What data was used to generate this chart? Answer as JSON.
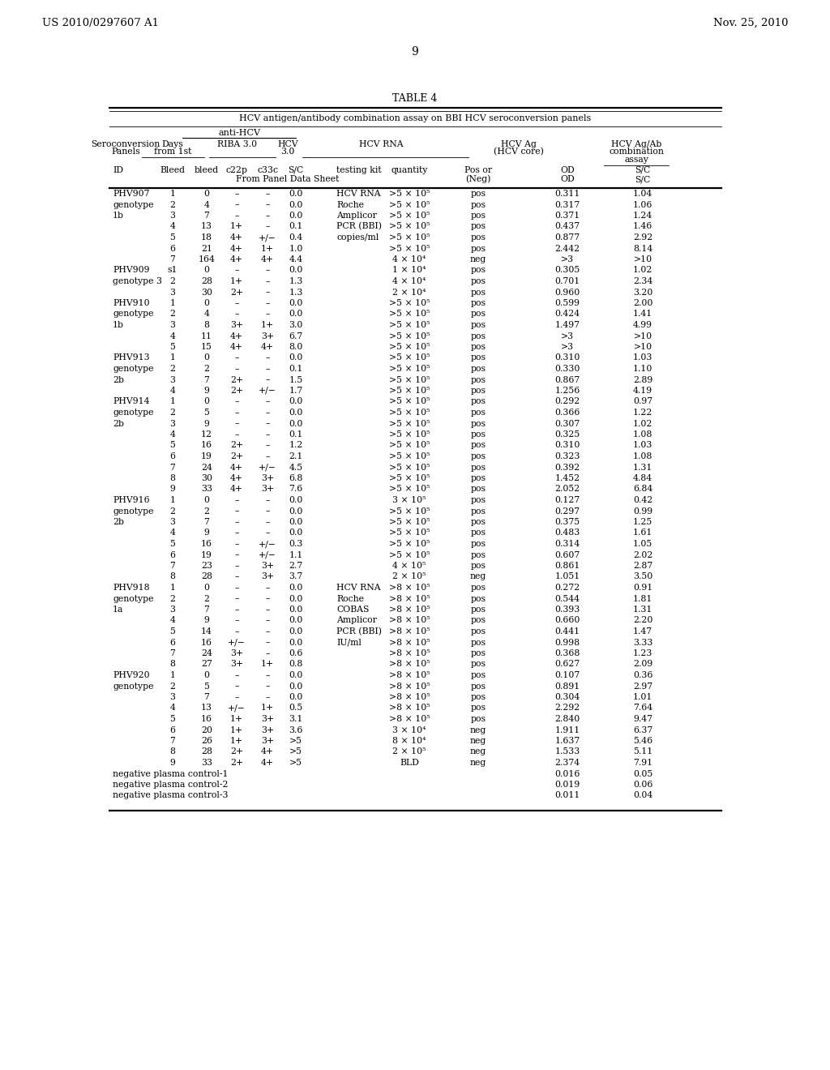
{
  "title": "TABLE 4",
  "page_header_left": "US 2010/0297607 A1",
  "page_header_right": "Nov. 25, 2010",
  "page_number": "9",
  "subtitle": "HCV antigen/antibody combination assay on BBI HCV seroconversion panels",
  "rows": [
    [
      "PHV907",
      "1",
      "0",
      "–",
      "–",
      "0.0",
      "HCV RNA",
      ">5 × 10⁵",
      "pos",
      "0.311",
      "1.04"
    ],
    [
      "genotype",
      "2",
      "4",
      "–",
      "–",
      "0.0",
      "Roche",
      ">5 × 10⁵",
      "pos",
      "0.317",
      "1.06"
    ],
    [
      "1b",
      "3",
      "7",
      "–",
      "–",
      "0.0",
      "Amplicor",
      ">5 × 10⁵",
      "pos",
      "0.371",
      "1.24"
    ],
    [
      "",
      "4",
      "13",
      "1+",
      "–",
      "0.1",
      "PCR (BBI)",
      ">5 × 10⁵",
      "pos",
      "0.437",
      "1.46"
    ],
    [
      "",
      "5",
      "18",
      "4+",
      "+/−",
      "0.4",
      "copies/ml",
      ">5 × 10⁵",
      "pos",
      "0.877",
      "2.92"
    ],
    [
      "",
      "6",
      "21",
      "4+",
      "1+",
      "1.0",
      "",
      ">5 × 10⁵",
      "pos",
      "2.442",
      "8.14"
    ],
    [
      "",
      "7",
      "164",
      "4+",
      "4+",
      "4.4",
      "",
      "4 × 10⁴",
      "neg",
      ">3",
      ">10"
    ],
    [
      "PHV909",
      "s1",
      "0",
      "–",
      "–",
      "0.0",
      "",
      "1 × 10⁴",
      "pos",
      "0.305",
      "1.02"
    ],
    [
      "genotype 3",
      "2",
      "28",
      "1+",
      "–",
      "1.3",
      "",
      "4 × 10⁴",
      "pos",
      "0.701",
      "2.34"
    ],
    [
      "",
      "3",
      "30",
      "2+",
      "–",
      "1.3",
      "",
      "2 × 10⁴",
      "pos",
      "0.960",
      "3.20"
    ],
    [
      "PHV910",
      "1",
      "0",
      "–",
      "–",
      "0.0",
      "",
      ">5 × 10⁵",
      "pos",
      "0.599",
      "2.00"
    ],
    [
      "genotype",
      "2",
      "4",
      "–",
      "–",
      "0.0",
      "",
      ">5 × 10⁵",
      "pos",
      "0.424",
      "1.41"
    ],
    [
      "1b",
      "3",
      "8",
      "3+",
      "1+",
      "3.0",
      "",
      ">5 × 10⁵",
      "pos",
      "1.497",
      "4.99"
    ],
    [
      "",
      "4",
      "11",
      "4+",
      "3+",
      "6.7",
      "",
      ">5 × 10⁵",
      "pos",
      ">3",
      ">10"
    ],
    [
      "",
      "5",
      "15",
      "4+",
      "4+",
      "8.0",
      "",
      ">5 × 10⁵",
      "pos",
      ">3",
      ">10"
    ],
    [
      "PHV913",
      "1",
      "0",
      "–",
      "–",
      "0.0",
      "",
      ">5 × 10⁵",
      "pos",
      "0.310",
      "1.03"
    ],
    [
      "genotype",
      "2",
      "2",
      "–",
      "–",
      "0.1",
      "",
      ">5 × 10⁵",
      "pos",
      "0.330",
      "1.10"
    ],
    [
      "2b",
      "3",
      "7",
      "2+",
      "–",
      "1.5",
      "",
      ">5 × 10⁵",
      "pos",
      "0.867",
      "2.89"
    ],
    [
      "",
      "4",
      "9",
      "2+",
      "+/−",
      "1.7",
      "",
      ">5 × 10⁵",
      "pos",
      "1.256",
      "4.19"
    ],
    [
      "PHV914",
      "1",
      "0",
      "–",
      "–",
      "0.0",
      "",
      ">5 × 10⁵",
      "pos",
      "0.292",
      "0.97"
    ],
    [
      "genotype",
      "2",
      "5",
      "–",
      "–",
      "0.0",
      "",
      ">5 × 10⁵",
      "pos",
      "0.366",
      "1.22"
    ],
    [
      "2b",
      "3",
      "9",
      "–",
      "–",
      "0.0",
      "",
      ">5 × 10⁵",
      "pos",
      "0.307",
      "1.02"
    ],
    [
      "",
      "4",
      "12",
      "–",
      "–",
      "0.1",
      "",
      ">5 × 10⁵",
      "pos",
      "0.325",
      "1.08"
    ],
    [
      "",
      "5",
      "16",
      "2+",
      "–",
      "1.2",
      "",
      ">5 × 10⁵",
      "pos",
      "0.310",
      "1.03"
    ],
    [
      "",
      "6",
      "19",
      "2+",
      "–",
      "2.1",
      "",
      ">5 × 10⁵",
      "pos",
      "0.323",
      "1.08"
    ],
    [
      "",
      "7",
      "24",
      "4+",
      "+/−",
      "4.5",
      "",
      ">5 × 10⁵",
      "pos",
      "0.392",
      "1.31"
    ],
    [
      "",
      "8",
      "30",
      "4+",
      "3+",
      "6.8",
      "",
      ">5 × 10⁵",
      "pos",
      "1.452",
      "4.84"
    ],
    [
      "",
      "9",
      "33",
      "4+",
      "3+",
      "7.6",
      "",
      ">5 × 10⁵",
      "pos",
      "2.052",
      "6.84"
    ],
    [
      "PHV916",
      "1",
      "0",
      "–",
      "–",
      "0.0",
      "",
      "3 × 10⁵",
      "pos",
      "0.127",
      "0.42"
    ],
    [
      "genotype",
      "2",
      "2",
      "–",
      "–",
      "0.0",
      "",
      ">5 × 10⁵",
      "pos",
      "0.297",
      "0.99"
    ],
    [
      "2b",
      "3",
      "7",
      "–",
      "–",
      "0.0",
      "",
      ">5 × 10⁵",
      "pos",
      "0.375",
      "1.25"
    ],
    [
      "",
      "4",
      "9",
      "–",
      "–",
      "0.0",
      "",
      ">5 × 10⁵",
      "pos",
      "0.483",
      "1.61"
    ],
    [
      "",
      "5",
      "16",
      "–",
      "+/−",
      "0.3",
      "",
      ">5 × 10⁵",
      "pos",
      "0.314",
      "1.05"
    ],
    [
      "",
      "6",
      "19",
      "–",
      "+/−",
      "1.1",
      "",
      ">5 × 10⁵",
      "pos",
      "0.607",
      "2.02"
    ],
    [
      "",
      "7",
      "23",
      "–",
      "3+",
      "2.7",
      "",
      "4 × 10⁵",
      "pos",
      "0.861",
      "2.87"
    ],
    [
      "",
      "8",
      "28",
      "–",
      "3+",
      "3.7",
      "",
      "2 × 10⁵",
      "neg",
      "1.051",
      "3.50"
    ],
    [
      "PHV918",
      "1",
      "0",
      "–",
      "–",
      "0.0",
      "HCV RNA",
      ">8 × 10⁵",
      "pos",
      "0.272",
      "0.91"
    ],
    [
      "genotype",
      "2",
      "2",
      "–",
      "–",
      "0.0",
      "Roche",
      ">8 × 10⁵",
      "pos",
      "0.544",
      "1.81"
    ],
    [
      "1a",
      "3",
      "7",
      "–",
      "–",
      "0.0",
      "COBAS",
      ">8 × 10⁵",
      "pos",
      "0.393",
      "1.31"
    ],
    [
      "",
      "4",
      "9",
      "–",
      "–",
      "0.0",
      "Amplicor",
      ">8 × 10⁵",
      "pos",
      "0.660",
      "2.20"
    ],
    [
      "",
      "5",
      "14",
      "–",
      "–",
      "0.0",
      "PCR (BBI)",
      ">8 × 10⁵",
      "pos",
      "0.441",
      "1.47"
    ],
    [
      "",
      "6",
      "16",
      "+/−",
      "–",
      "0.0",
      "IU/ml",
      ">8 × 10⁵",
      "pos",
      "0.998",
      "3.33"
    ],
    [
      "",
      "7",
      "24",
      "3+",
      "–",
      "0.6",
      "",
      ">8 × 10⁵",
      "pos",
      "0.368",
      "1.23"
    ],
    [
      "",
      "8",
      "27",
      "3+",
      "1+",
      "0.8",
      "",
      ">8 × 10⁵",
      "pos",
      "0.627",
      "2.09"
    ],
    [
      "PHV920",
      "1",
      "0",
      "–",
      "–",
      "0.0",
      "",
      ">8 × 10⁵",
      "pos",
      "0.107",
      "0.36"
    ],
    [
      "genotype",
      "2",
      "5",
      "–",
      "–",
      "0.0",
      "",
      ">8 × 10⁵",
      "pos",
      "0.891",
      "2.97"
    ],
    [
      "",
      "3",
      "7",
      "–",
      "–",
      "0.0",
      "",
      ">8 × 10⁵",
      "pos",
      "0.304",
      "1.01"
    ],
    [
      "",
      "4",
      "13",
      "+/−",
      "1+",
      "0.5",
      "",
      ">8 × 10⁵",
      "pos",
      "2.292",
      "7.64"
    ],
    [
      "",
      "5",
      "16",
      "1+",
      "3+",
      "3.1",
      "",
      ">8 × 10⁵",
      "pos",
      "2.840",
      "9.47"
    ],
    [
      "",
      "6",
      "20",
      "1+",
      "3+",
      "3.6",
      "",
      "3 × 10⁴",
      "neg",
      "1.911",
      "6.37"
    ],
    [
      "",
      "7",
      "26",
      "1+",
      "3+",
      ">5",
      "",
      "8 × 10⁴",
      "neg",
      "1.637",
      "5.46"
    ],
    [
      "",
      "8",
      "28",
      "2+",
      "4+",
      ">5",
      "",
      "2 × 10⁵",
      "neg",
      "1.533",
      "5.11"
    ],
    [
      "",
      "9",
      "33",
      "2+",
      "4+",
      ">5",
      "",
      "BLD",
      "neg",
      "2.374",
      "7.91"
    ],
    [
      "negative plasma control-1",
      "",
      "",
      "",
      "",
      "",
      "",
      "",
      "",
      "0.016",
      "0.05"
    ],
    [
      "negative plasma control-2",
      "",
      "",
      "",
      "",
      "",
      "",
      "",
      "",
      "0.019",
      "0.06"
    ],
    [
      "negative plasma control-3",
      "",
      "",
      "",
      "",
      "",
      "",
      "",
      "",
      "0.011",
      "0.04"
    ]
  ]
}
